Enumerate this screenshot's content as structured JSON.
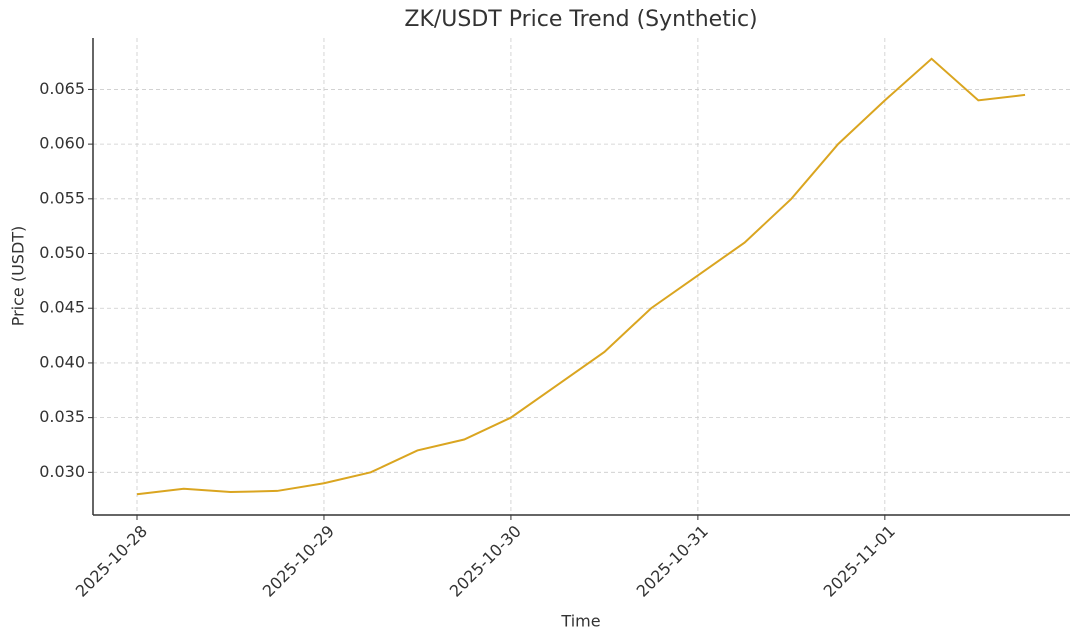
{
  "chart_data": {
    "type": "line",
    "title": "ZK/USDT Price Trend (Synthetic)",
    "x_label": "Time",
    "y_label": "Price (USDT)",
    "categories": [
      "2025-10-28",
      null,
      null,
      null,
      "2025-10-29",
      null,
      null,
      null,
      "2025-10-30",
      null,
      null,
      null,
      "2025-10-31",
      null,
      null,
      null,
      "2025-11-01",
      null,
      null,
      null
    ],
    "values": [
      0.028,
      0.0285,
      0.0282,
      0.0283,
      0.029,
      0.03,
      0.032,
      0.033,
      0.035,
      0.038,
      0.041,
      0.045,
      0.048,
      0.051,
      0.055,
      0.06,
      0.064,
      0.0678,
      0.064,
      0.0645
    ],
    "color": "#daa520",
    "ylim": [
      0.0261,
      0.0697
    ],
    "yticks": [
      {
        "value": 0.03,
        "label": "0.030"
      },
      0.035,
      {
        "value": 0.04,
        "label": "0.040"
      },
      0.045,
      {
        "value": 0.05,
        "label": "0.050"
      },
      0.055,
      {
        "value": 0.06,
        "label": "0.060"
      },
      0.065
    ],
    "grid": true
  }
}
